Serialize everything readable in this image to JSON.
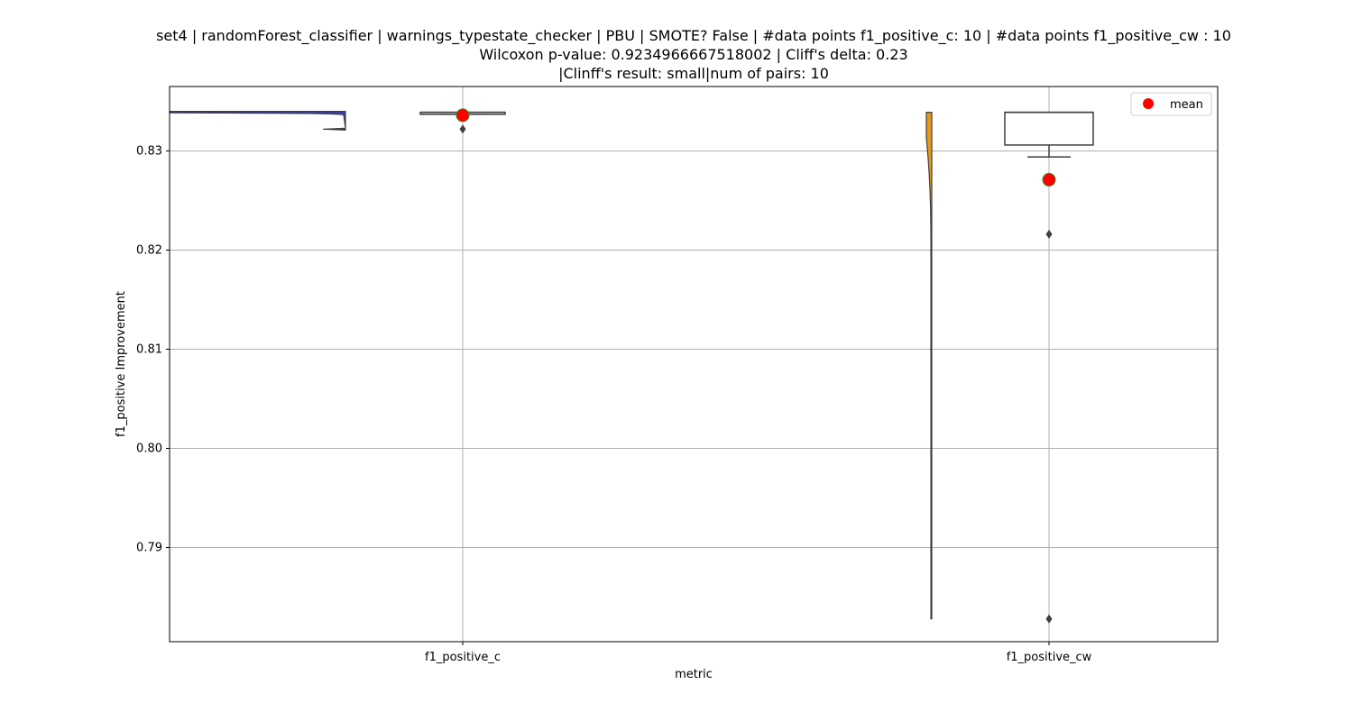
{
  "chart_data": {
    "type": "violin+box",
    "title_lines": [
      "set4 | randomForest_classifier | warnings_typestate_checker | PBU | SMOTE? False | #data points f1_positive_c: 10 | #data points f1_positive_cw : 10",
      "Wilcoxon p-value: 0.9234966667518002 | Cliff's delta: 0.23",
      "|Clinff's result: small|num of pairs: 10"
    ],
    "xlabel": "metric",
    "ylabel": "f1_positive Improvement",
    "categories": [
      "f1_positive_c",
      "f1_positive_cw"
    ],
    "ylim": [
      0.7805,
      0.8365
    ],
    "yticks": [
      0.79,
      0.8,
      0.81,
      0.82,
      0.83
    ],
    "ytick_labels": [
      "0.79",
      "0.80",
      "0.81",
      "0.82",
      "0.83"
    ],
    "grid": true,
    "legend": {
      "position": "upper right",
      "entries": [
        {
          "label": "mean",
          "color": "#ff0000"
        }
      ]
    },
    "series": [
      {
        "name": "f1_positive_c",
        "violin_color": "#3b3bb5",
        "violin_range": [
          0.8322,
          0.8339
        ],
        "box": {
          "q1": 0.8337,
          "median": 0.8339,
          "q3": 0.8339,
          "whisker_low": 0.8337,
          "whisker_high": 0.8339
        },
        "outliers": [
          0.8322
        ],
        "mean": 0.8336
      },
      {
        "name": "f1_positive_cw",
        "violin_color": "#e69a1c",
        "violin_range": [
          0.7828,
          0.8339
        ],
        "box": {
          "q1": 0.8306,
          "median": 0.8339,
          "q3": 0.8339,
          "whisker_low": 0.8294,
          "whisker_high": 0.8339
        },
        "outliers": [
          0.8216,
          0.7828
        ],
        "mean": 0.8271
      }
    ]
  }
}
